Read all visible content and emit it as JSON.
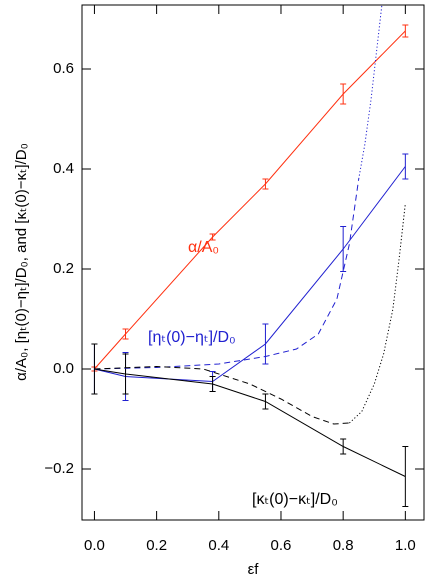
{
  "chart_data": {
    "type": "line",
    "xlabel": "εf",
    "ylabel": "α/A₀,  [ηₜ(0)−ηₜ]/D₀,   and   [κₜ(0)−κₜ]/D₀",
    "xlim": [
      -0.04,
      1.06
    ],
    "ylim": [
      -0.302,
      0.728
    ],
    "xticks": [
      {
        "value": 0,
        "label": "0.0"
      },
      0.2,
      0.4,
      0.6,
      0.8,
      {
        "value": 1,
        "label": "1.0"
      }
    ],
    "yticks": [
      {
        "value": -0.2,
        "label": "−0.2"
      },
      {
        "value": 0,
        "label": "0.0"
      },
      0.2,
      0.4,
      0.6
    ],
    "series": [
      {
        "color": "#ff3010",
        "style": "solid",
        "x": [
          0,
          0.1,
          0.38,
          0.55,
          0.8,
          1.0
        ],
        "values": [
          0,
          0.07,
          0.264,
          0.37,
          0.55,
          0.676
        ],
        "errors": [
          0.004,
          0.01,
          0.006,
          0.01,
          0.02,
          0.012
        ]
      },
      {
        "color": "#2020d0",
        "style": "solid",
        "x": [
          0,
          0.1,
          0.38,
          0.55,
          0.8,
          1.0
        ],
        "values": [
          0,
          -0.015,
          -0.025,
          0.05,
          0.24,
          0.405
        ],
        "errors": [
          0.05,
          0.048,
          0.02,
          0.04,
          0.045,
          0.025
        ]
      },
      {
        "color": "#000000",
        "style": "solid",
        "x": [
          0,
          0.1,
          0.38,
          0.55,
          0.8,
          1.0
        ],
        "values": [
          0,
          -0.01,
          -0.03,
          -0.065,
          -0.155,
          -0.215
        ],
        "errors": [
          0.05,
          0.04,
          0.015,
          0.015,
          0.015,
          0.06
        ]
      },
      {
        "color": "#2020d0",
        "style": "dashed",
        "x": [
          0,
          0.2,
          0.4,
          0.55,
          0.65,
          0.72,
          0.78,
          0.82,
          0.85
        ],
        "values": [
          0,
          0.003,
          0.01,
          0.025,
          0.04,
          0.07,
          0.14,
          0.25,
          0.38
        ]
      },
      {
        "color": "#2020d0",
        "style": "dotted",
        "x": [
          0.85,
          0.87,
          0.89,
          0.91,
          0.925
        ],
        "values": [
          0.38,
          0.45,
          0.54,
          0.65,
          0.73
        ]
      },
      {
        "color": "#000000",
        "style": "dashed",
        "x": [
          0,
          0.2,
          0.35,
          0.5,
          0.6,
          0.7,
          0.77,
          0.82
        ],
        "values": [
          0,
          0.005,
          0,
          -0.03,
          -0.06,
          -0.095,
          -0.11,
          -0.108
        ]
      },
      {
        "color": "#000000",
        "style": "dotted",
        "x": [
          0.82,
          0.86,
          0.9,
          0.93,
          0.96,
          0.98,
          1.0
        ],
        "values": [
          -0.108,
          -0.085,
          -0.03,
          0.03,
          0.12,
          0.22,
          0.33
        ]
      }
    ],
    "annotations": [
      {
        "text": "α/A₀",
        "color": "#ff3010"
      },
      {
        "text": "[ηₜ(0)−ηₜ]/D₀",
        "color": "#2020d0"
      },
      {
        "text": "[κₜ(0)−κₜ]/D₀",
        "color": "#000000"
      }
    ]
  }
}
